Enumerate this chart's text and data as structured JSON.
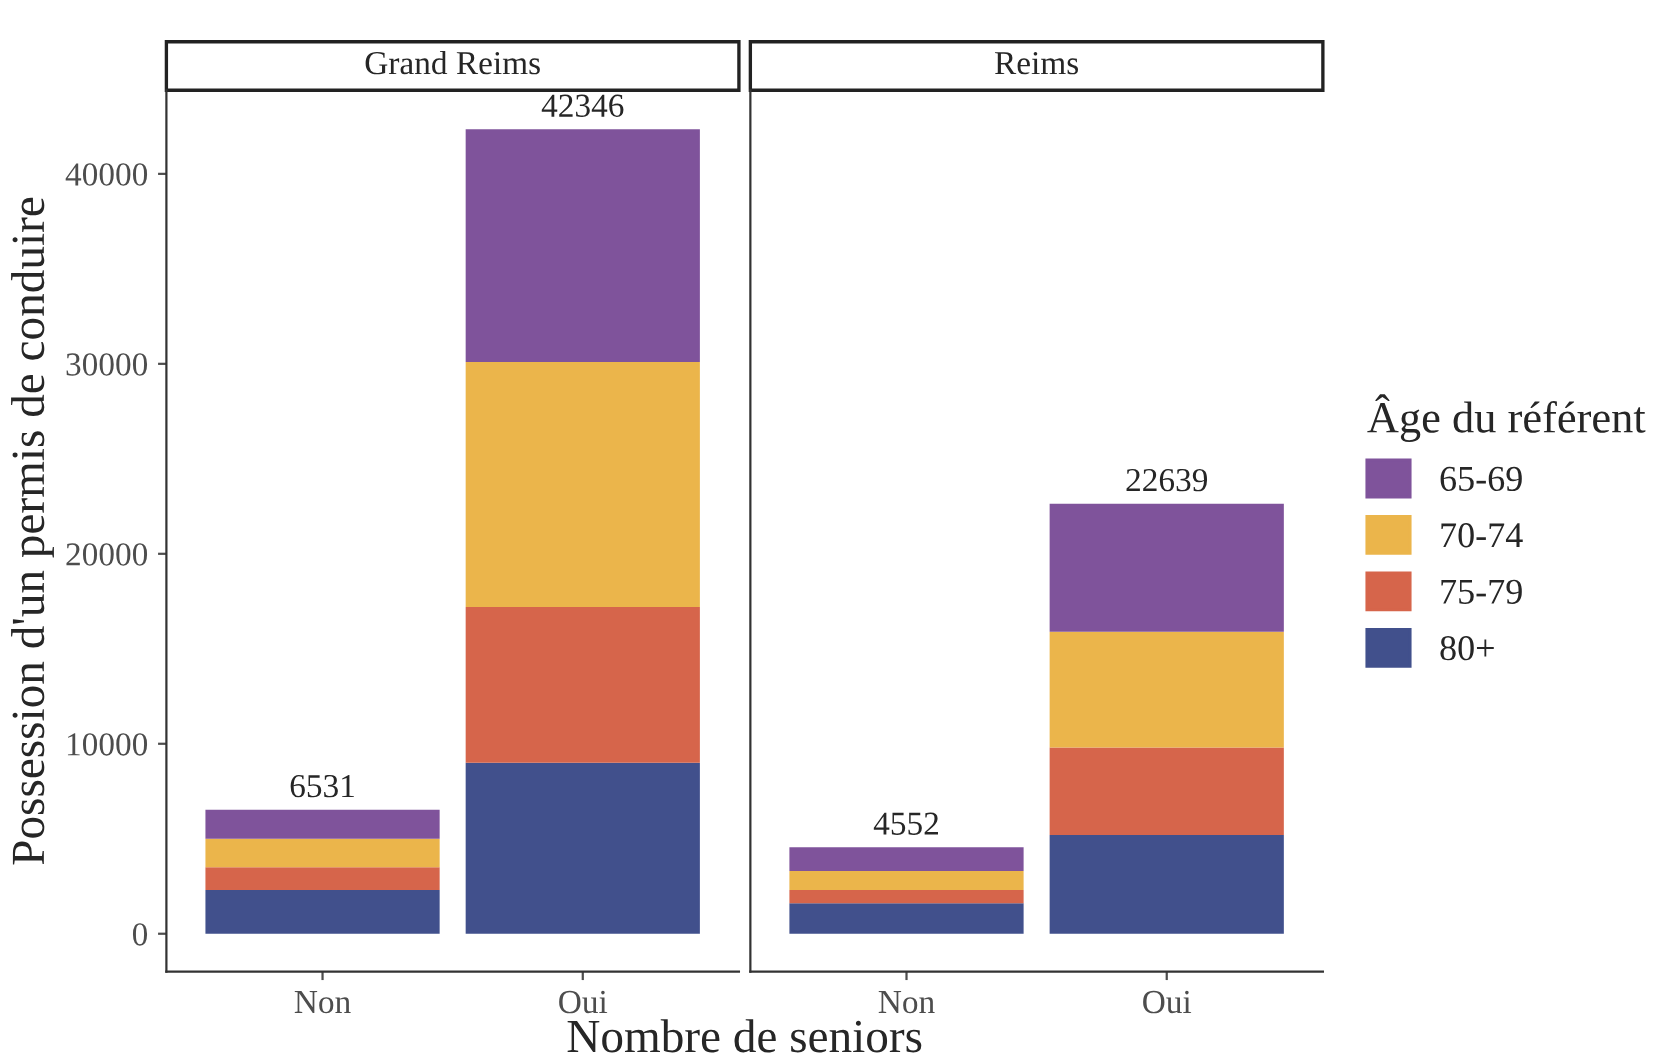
{
  "chart_data": [
    {
      "type": "bar",
      "title": "Grand Reims",
      "xlabel": "Nombre de seniors",
      "ylabel": "Possession d'un permis de conduire",
      "categories": [
        "Non",
        "Oui"
      ],
      "stacked": true,
      "ylim": [
        -2000,
        44400
      ],
      "yticks": [
        0,
        10000,
        20000,
        30000,
        40000
      ],
      "grid": false,
      "totals": [
        "6531",
        "42346"
      ],
      "series": [
        {
          "color": "#41508c",
          "values": [
            2300,
            9000
          ]
        },
        {
          "color": "#d6654b",
          "values": [
            1200,
            8200
          ]
        },
        {
          "color": "#ebb54b",
          "values": [
            1500,
            12900
          ]
        },
        {
          "color": "#7f539b",
          "values": [
            1531,
            12246
          ]
        }
      ]
    },
    {
      "type": "bar",
      "title": "Reims",
      "categories": [
        "Non",
        "Oui"
      ],
      "stacked": true,
      "ylim": [
        -2000,
        44400
      ],
      "yticks": [
        0,
        10000,
        20000,
        30000,
        40000
      ],
      "tick_labels": "x",
      "grid": false,
      "legend": "right",
      "legend_title": "Âge du référent",
      "totals": [
        "4552",
        "22639"
      ],
      "series": [
        {
          "name": "80+",
          "color": "#41508c",
          "values": [
            1600,
            5200
          ]
        },
        {
          "name": "75-79",
          "color": "#d6654b",
          "values": [
            700,
            4600
          ]
        },
        {
          "name": "70-74",
          "color": "#ebb54b",
          "values": [
            1000,
            6100
          ]
        },
        {
          "name": "65-69",
          "color": "#7f539b",
          "values": [
            1252,
            6739
          ]
        }
      ]
    }
  ]
}
